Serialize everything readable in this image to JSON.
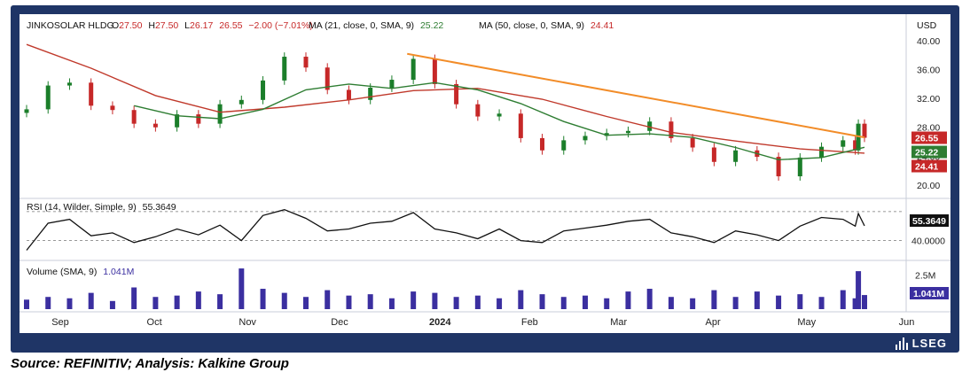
{
  "chart_data": {
    "type": "candlestick",
    "currency": "USD",
    "symbol": "JINKOSOLAR HLDG",
    "ohlc_label": {
      "o_label": "O",
      "o": "27.50",
      "h_label": "H",
      "h": "27.50",
      "l_label": "L",
      "l": "26.17",
      "c_value": "26.55",
      "change": "−2.00 (−7.01%)"
    },
    "ma21": {
      "label": "MA (21, close, 0, SMA, 9)",
      "value": "25.22",
      "color": "#2e7d32"
    },
    "ma50": {
      "label": "MA (50, close, 0, SMA, 9)",
      "value": "24.41",
      "color": "#c0392b"
    },
    "price_axis": {
      "ticks": [
        "40.00",
        "36.00",
        "32.00",
        "28.00",
        "24.00",
        "20.00"
      ],
      "tick_values": [
        40,
        36,
        32,
        28,
        24,
        20
      ],
      "range": [
        18.5,
        41
      ]
    },
    "price_badges": [
      {
        "value": 26.55,
        "label": "26.55",
        "color": "#c62828"
      },
      {
        "value": 25.22,
        "label": "25.22",
        "color": "#2e7d32"
      },
      {
        "value": 24.41,
        "label": "24.41",
        "color": "#c62828"
      }
    ],
    "trendline": {
      "start": {
        "date": "2023-12-27",
        "value": 38.2
      },
      "end": {
        "date": "2024-05-24",
        "value": 26.6
      },
      "color": "#f28c28"
    },
    "x_axis": {
      "labels": [
        "Sep",
        "Oct",
        "Nov",
        "Dec",
        "2024",
        "Feb",
        "Mar",
        "Apr",
        "May",
        "Jun"
      ],
      "label_dates": [
        "2023-09-01",
        "2023-10-02",
        "2023-11-01",
        "2023-12-01",
        "2024-01-02",
        "2024-02-01",
        "2024-03-01",
        "2024-04-01",
        "2024-05-01",
        "2024-06-03"
      ],
      "range": [
        "2023-08-25",
        "2024-06-06"
      ]
    },
    "close_series": [
      {
        "date": "2023-08-25",
        "close": 30.5
      },
      {
        "date": "2023-09-01",
        "close": 33.8
      },
      {
        "date": "2023-09-08",
        "close": 34.2
      },
      {
        "date": "2023-09-15",
        "close": 31.0
      },
      {
        "date": "2023-09-22",
        "close": 30.4
      },
      {
        "date": "2023-09-29",
        "close": 28.5
      },
      {
        "date": "2023-10-06",
        "close": 28.0
      },
      {
        "date": "2023-10-13",
        "close": 29.8
      },
      {
        "date": "2023-10-20",
        "close": 28.5
      },
      {
        "date": "2023-10-27",
        "close": 31.2
      },
      {
        "date": "2023-11-03",
        "close": 31.8
      },
      {
        "date": "2023-11-10",
        "close": 34.5
      },
      {
        "date": "2023-11-17",
        "close": 37.8
      },
      {
        "date": "2023-11-24",
        "close": 36.3
      },
      {
        "date": "2023-12-01",
        "close": 33.2
      },
      {
        "date": "2023-12-08",
        "close": 31.8
      },
      {
        "date": "2023-12-15",
        "close": 33.5
      },
      {
        "date": "2023-12-22",
        "close": 34.6
      },
      {
        "date": "2023-12-29",
        "close": 37.5
      },
      {
        "date": "2024-01-05",
        "close": 34.0
      },
      {
        "date": "2024-01-12",
        "close": 31.2
      },
      {
        "date": "2024-01-19",
        "close": 29.5
      },
      {
        "date": "2024-01-26",
        "close": 29.9
      },
      {
        "date": "2024-02-02",
        "close": 26.5
      },
      {
        "date": "2024-02-09",
        "close": 24.8
      },
      {
        "date": "2024-02-16",
        "close": 26.2
      },
      {
        "date": "2024-02-23",
        "close": 26.8
      },
      {
        "date": "2024-03-01",
        "close": 27.2
      },
      {
        "date": "2024-03-08",
        "close": 27.5
      },
      {
        "date": "2024-03-15",
        "close": 28.8
      },
      {
        "date": "2024-03-22",
        "close": 26.5
      },
      {
        "date": "2024-03-29",
        "close": 25.2
      },
      {
        "date": "2024-04-05",
        "close": 23.2
      },
      {
        "date": "2024-04-12",
        "close": 24.8
      },
      {
        "date": "2024-04-19",
        "close": 23.9
      },
      {
        "date": "2024-04-26",
        "close": 21.2
      },
      {
        "date": "2024-05-03",
        "close": 23.8
      },
      {
        "date": "2024-05-10",
        "close": 25.3
      },
      {
        "date": "2024-05-17",
        "close": 26.2
      },
      {
        "date": "2024-05-21",
        "close": 24.8
      },
      {
        "date": "2024-05-22",
        "close": 28.5
      },
      {
        "date": "2024-05-24",
        "close": 26.55
      }
    ],
    "ma21_series": [
      {
        "date": "2023-09-29",
        "value": 31.0
      },
      {
        "date": "2023-10-13",
        "value": 29.6
      },
      {
        "date": "2023-10-27",
        "value": 29.2
      },
      {
        "date": "2023-11-10",
        "value": 30.5
      },
      {
        "date": "2023-11-24",
        "value": 33.2
      },
      {
        "date": "2023-12-08",
        "value": 34.0
      },
      {
        "date": "2023-12-22",
        "value": 33.4
      },
      {
        "date": "2024-01-05",
        "value": 34.2
      },
      {
        "date": "2024-01-19",
        "value": 33.2
      },
      {
        "date": "2024-02-02",
        "value": 31.3
      },
      {
        "date": "2024-02-16",
        "value": 28.8
      },
      {
        "date": "2024-03-01",
        "value": 26.9
      },
      {
        "date": "2024-03-15",
        "value": 27.1
      },
      {
        "date": "2024-03-29",
        "value": 26.6
      },
      {
        "date": "2024-04-12",
        "value": 25.2
      },
      {
        "date": "2024-04-26",
        "value": 23.5
      },
      {
        "date": "2024-05-10",
        "value": 23.8
      },
      {
        "date": "2024-05-24",
        "value": 25.22
      }
    ],
    "ma50_series": [
      {
        "date": "2023-08-25",
        "value": 39.5
      },
      {
        "date": "2023-09-15",
        "value": 36.2
      },
      {
        "date": "2023-10-06",
        "value": 32.4
      },
      {
        "date": "2023-10-27",
        "value": 30.1
      },
      {
        "date": "2023-11-17",
        "value": 30.8
      },
      {
        "date": "2023-12-08",
        "value": 31.8
      },
      {
        "date": "2023-12-29",
        "value": 33.1
      },
      {
        "date": "2024-01-19",
        "value": 33.4
      },
      {
        "date": "2024-02-09",
        "value": 31.9
      },
      {
        "date": "2024-03-01",
        "value": 29.5
      },
      {
        "date": "2024-03-22",
        "value": 27.3
      },
      {
        "date": "2024-04-12",
        "value": 26.1
      },
      {
        "date": "2024-05-03",
        "value": 25.0
      },
      {
        "date": "2024-05-24",
        "value": 24.41
      }
    ],
    "rsi": {
      "label": "RSI (14, Wilder, Simple, 9)",
      "value": "55.3649",
      "level_label": "40.0000",
      "axis_range": [
        25,
        80
      ],
      "series": [
        {
          "date": "2023-08-25",
          "value": 30
        },
        {
          "date": "2023-09-01",
          "value": 58
        },
        {
          "date": "2023-09-08",
          "value": 62
        },
        {
          "date": "2023-09-15",
          "value": 45
        },
        {
          "date": "2023-09-22",
          "value": 48
        },
        {
          "date": "2023-09-29",
          "value": 38
        },
        {
          "date": "2023-10-06",
          "value": 44
        },
        {
          "date": "2023-10-13",
          "value": 52
        },
        {
          "date": "2023-10-20",
          "value": 46
        },
        {
          "date": "2023-10-27",
          "value": 56
        },
        {
          "date": "2023-11-03",
          "value": 40
        },
        {
          "date": "2023-11-10",
          "value": 66
        },
        {
          "date": "2023-11-17",
          "value": 72
        },
        {
          "date": "2023-11-24",
          "value": 63
        },
        {
          "date": "2023-12-01",
          "value": 50
        },
        {
          "date": "2023-12-08",
          "value": 52
        },
        {
          "date": "2023-12-15",
          "value": 58
        },
        {
          "date": "2023-12-22",
          "value": 60
        },
        {
          "date": "2023-12-29",
          "value": 69
        },
        {
          "date": "2024-01-05",
          "value": 52
        },
        {
          "date": "2024-01-12",
          "value": 48
        },
        {
          "date": "2024-01-19",
          "value": 42
        },
        {
          "date": "2024-01-26",
          "value": 52
        },
        {
          "date": "2024-02-02",
          "value": 40
        },
        {
          "date": "2024-02-09",
          "value": 38
        },
        {
          "date": "2024-02-16",
          "value": 50
        },
        {
          "date": "2024-02-23",
          "value": 53
        },
        {
          "date": "2024-03-01",
          "value": 56
        },
        {
          "date": "2024-03-08",
          "value": 60
        },
        {
          "date": "2024-03-15",
          "value": 62
        },
        {
          "date": "2024-03-22",
          "value": 48
        },
        {
          "date": "2024-03-29",
          "value": 44
        },
        {
          "date": "2024-04-05",
          "value": 38
        },
        {
          "date": "2024-04-12",
          "value": 50
        },
        {
          "date": "2024-04-19",
          "value": 46
        },
        {
          "date": "2024-04-26",
          "value": 40
        },
        {
          "date": "2024-05-03",
          "value": 55
        },
        {
          "date": "2024-05-10",
          "value": 64
        },
        {
          "date": "2024-05-17",
          "value": 62
        },
        {
          "date": "2024-05-21",
          "value": 55
        },
        {
          "date": "2024-05-22",
          "value": 68
        },
        {
          "date": "2024-05-24",
          "value": 55.36
        }
      ]
    },
    "volume": {
      "label": "Volume (SMA, 9)",
      "value": "1.041M",
      "axis_label": "2.5M",
      "axis_value": 2.5,
      "axis_range": [
        0,
        3.2
      ],
      "color": "#3b2fa0",
      "series": [
        {
          "date": "2023-08-25",
          "value": 0.7
        },
        {
          "date": "2023-09-01",
          "value": 0.9
        },
        {
          "date": "2023-09-08",
          "value": 0.8
        },
        {
          "date": "2023-09-15",
          "value": 1.2
        },
        {
          "date": "2023-09-22",
          "value": 0.6
        },
        {
          "date": "2023-09-29",
          "value": 1.6
        },
        {
          "date": "2023-10-06",
          "value": 0.9
        },
        {
          "date": "2023-10-13",
          "value": 1.0
        },
        {
          "date": "2023-10-20",
          "value": 1.3
        },
        {
          "date": "2023-10-27",
          "value": 1.1
        },
        {
          "date": "2023-11-03",
          "value": 3.0
        },
        {
          "date": "2023-11-10",
          "value": 1.5
        },
        {
          "date": "2023-11-17",
          "value": 1.2
        },
        {
          "date": "2023-11-24",
          "value": 0.9
        },
        {
          "date": "2023-12-01",
          "value": 1.4
        },
        {
          "date": "2023-12-08",
          "value": 1.0
        },
        {
          "date": "2023-12-15",
          "value": 1.1
        },
        {
          "date": "2023-12-22",
          "value": 0.8
        },
        {
          "date": "2023-12-29",
          "value": 1.3
        },
        {
          "date": "2024-01-05",
          "value": 1.2
        },
        {
          "date": "2024-01-12",
          "value": 0.9
        },
        {
          "date": "2024-01-19",
          "value": 1.0
        },
        {
          "date": "2024-01-26",
          "value": 0.8
        },
        {
          "date": "2024-02-02",
          "value": 1.4
        },
        {
          "date": "2024-02-09",
          "value": 1.1
        },
        {
          "date": "2024-02-16",
          "value": 0.9
        },
        {
          "date": "2024-02-23",
          "value": 1.0
        },
        {
          "date": "2024-03-01",
          "value": 0.8
        },
        {
          "date": "2024-03-08",
          "value": 1.3
        },
        {
          "date": "2024-03-15",
          "value": 1.5
        },
        {
          "date": "2024-03-22",
          "value": 0.9
        },
        {
          "date": "2024-03-29",
          "value": 0.8
        },
        {
          "date": "2024-04-05",
          "value": 1.4
        },
        {
          "date": "2024-04-12",
          "value": 0.9
        },
        {
          "date": "2024-04-19",
          "value": 1.3
        },
        {
          "date": "2024-04-26",
          "value": 1.0
        },
        {
          "date": "2024-05-03",
          "value": 1.1
        },
        {
          "date": "2024-05-10",
          "value": 0.9
        },
        {
          "date": "2024-05-17",
          "value": 1.4
        },
        {
          "date": "2024-05-21",
          "value": 0.8
        },
        {
          "date": "2024-05-22",
          "value": 2.8
        },
        {
          "date": "2024-05-24",
          "value": 1.04
        }
      ]
    }
  },
  "branding": {
    "logo_text": "LSEG"
  },
  "caption": {
    "text": "Source: REFINITIV; Analysis: Kalkine Group"
  }
}
